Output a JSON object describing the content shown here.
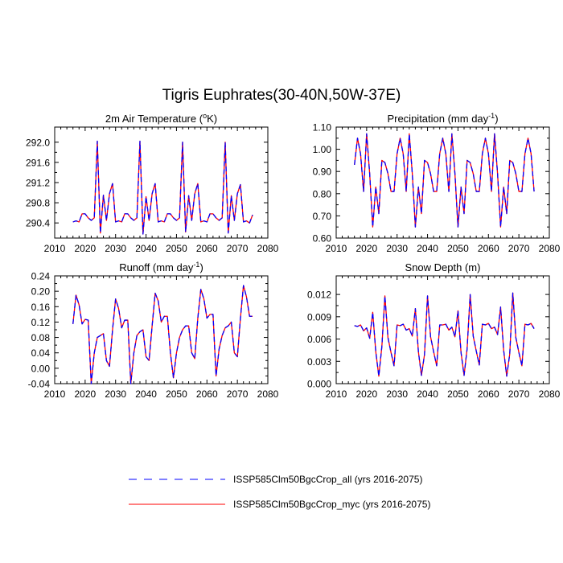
{
  "figure": {
    "title": "Tigris Euphrates(30-40N,50W-37E)"
  },
  "legend": {
    "entries": [
      {
        "label": "ISSP585Clm50BgcCrop_all (yrs 2016-2075)",
        "color": "#0000ff",
        "style": "dashed"
      },
      {
        "label": "ISSP585Clm50BgcCrop_myc (yrs 2016-2075)",
        "color": "#ff0000",
        "style": "solid"
      }
    ]
  },
  "chart_data": [
    {
      "type": "line",
      "title": "2m Air Temperature (°K)",
      "title_parts": [
        "2m Air Temperature (",
        "o",
        "K)"
      ],
      "xlim": [
        2010,
        2080
      ],
      "xticks": [
        2010,
        2020,
        2030,
        2040,
        2050,
        2060,
        2070,
        2080
      ],
      "ylim": [
        290.1,
        292.3
      ],
      "yticks": [
        290.4,
        290.8,
        291.2,
        291.6,
        292.0
      ],
      "ytick_labels": [
        "290.4",
        "290.8",
        "291.2",
        "291.6",
        "292.0"
      ],
      "x": [
        2016,
        2017,
        2018,
        2019,
        2020,
        2021,
        2022,
        2023,
        2024,
        2025,
        2026,
        2027,
        2028,
        2029,
        2030,
        2031,
        2032,
        2033,
        2034,
        2035,
        2036,
        2037,
        2038,
        2039,
        2040,
        2041,
        2042,
        2043,
        2044,
        2045,
        2046,
        2047,
        2048,
        2049,
        2050,
        2051,
        2052,
        2053,
        2054,
        2055,
        2056,
        2057,
        2058,
        2059,
        2060,
        2061,
        2062,
        2063,
        2064,
        2065,
        2066,
        2067,
        2068,
        2069,
        2070,
        2071,
        2072,
        2073,
        2074,
        2075
      ],
      "series": [
        {
          "name": "ISSP585Clm50BgcCrop_all (yrs 2016-2075)",
          "values": [
            290.42,
            290.44,
            290.42,
            290.58,
            290.58,
            290.5,
            290.45,
            290.5,
            292.02,
            290.2,
            290.95,
            290.45,
            290.98,
            291.18,
            290.42,
            290.44,
            290.42,
            290.58,
            290.58,
            290.5,
            290.45,
            290.5,
            292.02,
            290.18,
            290.92,
            290.45,
            290.98,
            291.18,
            290.42,
            290.44,
            290.42,
            290.58,
            290.58,
            290.5,
            290.45,
            290.5,
            292.0,
            290.22,
            290.94,
            290.45,
            290.98,
            291.18,
            290.42,
            290.44,
            290.42,
            290.58,
            290.58,
            290.5,
            290.45,
            290.5,
            292.0,
            290.2,
            290.94,
            290.45,
            290.98,
            291.16,
            290.42,
            290.44,
            290.4,
            290.56
          ]
        },
        {
          "name": "ISSP585Clm50BgcCrop_myc (yrs 2016-2075)",
          "values": [
            290.42,
            290.44,
            290.42,
            290.58,
            290.58,
            290.5,
            290.45,
            290.5,
            292.02,
            290.2,
            290.95,
            290.45,
            290.98,
            291.18,
            290.42,
            290.44,
            290.42,
            290.58,
            290.58,
            290.5,
            290.45,
            290.5,
            292.02,
            290.18,
            290.92,
            290.45,
            290.98,
            291.18,
            290.42,
            290.44,
            290.42,
            290.58,
            290.58,
            290.5,
            290.45,
            290.5,
            292.0,
            290.22,
            290.94,
            290.45,
            290.98,
            291.18,
            290.42,
            290.44,
            290.42,
            290.58,
            290.58,
            290.5,
            290.45,
            290.5,
            292.0,
            290.2,
            290.94,
            290.45,
            290.98,
            291.16,
            290.42,
            290.44,
            290.4,
            290.56
          ]
        }
      ]
    },
    {
      "type": "line",
      "title": "Precipitation (mm day-1)",
      "title_parts": [
        "Precipitation (mm day",
        "-1",
        ")"
      ],
      "xlim": [
        2010,
        2080
      ],
      "xticks": [
        2010,
        2020,
        2030,
        2040,
        2050,
        2060,
        2070,
        2080
      ],
      "ylim": [
        0.6,
        1.1
      ],
      "yticks": [
        0.6,
        0.7,
        0.8,
        0.9,
        1.0,
        1.1
      ],
      "ytick_labels": [
        "0.60",
        "0.70",
        "0.80",
        "0.90",
        "1.00",
        "1.10"
      ],
      "x": [
        2016,
        2017,
        2018,
        2019,
        2020,
        2021,
        2022,
        2023,
        2024,
        2025,
        2026,
        2027,
        2028,
        2029,
        2030,
        2031,
        2032,
        2033,
        2034,
        2035,
        2036,
        2037,
        2038,
        2039,
        2040,
        2041,
        2042,
        2043,
        2044,
        2045,
        2046,
        2047,
        2048,
        2049,
        2050,
        2051,
        2052,
        2053,
        2054,
        2055,
        2056,
        2057,
        2058,
        2059,
        2060,
        2061,
        2062,
        2063,
        2064,
        2065,
        2066,
        2067,
        2068,
        2069,
        2070,
        2071,
        2072,
        2073,
        2074,
        2075
      ],
      "series": [
        {
          "name": "ISSP585Clm50BgcCrop_all (yrs 2016-2075)",
          "values": [
            0.93,
            1.05,
            0.98,
            0.81,
            1.07,
            0.89,
            0.65,
            0.83,
            0.71,
            0.95,
            0.94,
            0.89,
            0.81,
            0.81,
            0.98,
            1.05,
            0.98,
            0.81,
            1.07,
            0.89,
            0.65,
            0.83,
            0.71,
            0.95,
            0.94,
            0.89,
            0.81,
            0.81,
            0.98,
            1.05,
            0.98,
            0.81,
            1.07,
            0.89,
            0.65,
            0.83,
            0.71,
            0.95,
            0.94,
            0.89,
            0.81,
            0.81,
            0.98,
            1.05,
            0.98,
            0.81,
            1.07,
            0.89,
            0.65,
            0.83,
            0.71,
            0.95,
            0.94,
            0.89,
            0.81,
            0.81,
            0.98,
            1.05,
            0.98,
            0.81
          ]
        },
        {
          "name": "ISSP585Clm50BgcCrop_myc (yrs 2016-2075)",
          "values": [
            0.93,
            1.05,
            0.98,
            0.81,
            1.07,
            0.89,
            0.65,
            0.83,
            0.71,
            0.95,
            0.94,
            0.89,
            0.81,
            0.81,
            0.98,
            1.05,
            0.98,
            0.81,
            1.07,
            0.89,
            0.65,
            0.83,
            0.71,
            0.95,
            0.94,
            0.89,
            0.81,
            0.81,
            0.98,
            1.05,
            0.98,
            0.81,
            1.07,
            0.89,
            0.65,
            0.83,
            0.71,
            0.95,
            0.94,
            0.89,
            0.81,
            0.81,
            0.98,
            1.05,
            0.98,
            0.81,
            1.07,
            0.89,
            0.65,
            0.83,
            0.71,
            0.95,
            0.94,
            0.89,
            0.81,
            0.81,
            0.98,
            1.05,
            0.98,
            0.81
          ]
        }
      ]
    },
    {
      "type": "line",
      "title": "Runoff (mm day-1)",
      "title_parts": [
        "Runoff (mm day",
        "-1",
        ")"
      ],
      "xlim": [
        2010,
        2080
      ],
      "xticks": [
        2010,
        2020,
        2030,
        2040,
        2050,
        2060,
        2070,
        2080
      ],
      "ylim": [
        -0.04,
        0.24
      ],
      "yticks": [
        -0.04,
        0.0,
        0.04,
        0.08,
        0.12,
        0.16,
        0.2,
        0.24
      ],
      "ytick_labels": [
        "-0.04",
        "0.00",
        "0.04",
        "0.08",
        "0.12",
        "0.16",
        "0.20",
        "0.24"
      ],
      "x": [
        2016,
        2017,
        2018,
        2019,
        2020,
        2021,
        2022,
        2023,
        2024,
        2025,
        2026,
        2027,
        2028,
        2029,
        2030,
        2031,
        2032,
        2033,
        2034,
        2035,
        2036,
        2037,
        2038,
        2039,
        2040,
        2041,
        2042,
        2043,
        2044,
        2045,
        2046,
        2047,
        2048,
        2049,
        2050,
        2051,
        2052,
        2053,
        2054,
        2055,
        2056,
        2057,
        2058,
        2059,
        2060,
        2061,
        2062,
        2063,
        2064,
        2065,
        2066,
        2067,
        2068,
        2069,
        2070,
        2071,
        2072,
        2073,
        2074,
        2075
      ],
      "series": [
        {
          "name": "ISSP585Clm50BgcCrop_all (yrs 2016-2075)",
          "values": [
            0.115,
            0.19,
            0.165,
            0.115,
            0.127,
            0.125,
            -0.04,
            0.04,
            0.08,
            0.085,
            0.09,
            0.02,
            0.005,
            0.1,
            0.18,
            0.155,
            0.105,
            0.125,
            0.125,
            -0.04,
            0.04,
            0.085,
            0.095,
            0.1,
            0.03,
            0.02,
            0.11,
            0.195,
            0.175,
            0.12,
            0.135,
            0.135,
            0.04,
            -0.025,
            0.04,
            0.08,
            0.1,
            0.11,
            0.11,
            0.04,
            0.025,
            0.13,
            0.205,
            0.18,
            0.13,
            0.14,
            0.14,
            -0.02,
            0.05,
            0.085,
            0.105,
            0.11,
            0.12,
            0.04,
            0.03,
            0.13,
            0.215,
            0.185,
            0.135,
            0.135
          ]
        },
        {
          "name": "ISSP585Clm50BgcCrop_myc (yrs 2016-2075)",
          "values": [
            0.115,
            0.19,
            0.165,
            0.115,
            0.127,
            0.125,
            -0.04,
            0.04,
            0.08,
            0.085,
            0.09,
            0.02,
            0.005,
            0.1,
            0.18,
            0.155,
            0.105,
            0.125,
            0.125,
            -0.04,
            0.04,
            0.085,
            0.095,
            0.1,
            0.03,
            0.02,
            0.11,
            0.195,
            0.175,
            0.12,
            0.135,
            0.135,
            0.04,
            -0.025,
            0.04,
            0.08,
            0.1,
            0.11,
            0.11,
            0.04,
            0.025,
            0.13,
            0.205,
            0.18,
            0.13,
            0.14,
            0.14,
            -0.02,
            0.05,
            0.085,
            0.105,
            0.11,
            0.12,
            0.04,
            0.03,
            0.13,
            0.215,
            0.185,
            0.135,
            0.135
          ]
        }
      ]
    },
    {
      "type": "line",
      "title": "Snow Depth (m)",
      "title_parts": [
        "Snow Depth (m)"
      ],
      "xlim": [
        2010,
        2080
      ],
      "xticks": [
        2010,
        2020,
        2030,
        2040,
        2050,
        2060,
        2070,
        2080
      ],
      "ylim": [
        0.0,
        0.0145
      ],
      "yticks": [
        0.0,
        0.003,
        0.006,
        0.009,
        0.012
      ],
      "ytick_labels": [
        "0.000",
        "0.003",
        "0.006",
        "0.009",
        "0.012"
      ],
      "x": [
        2016,
        2017,
        2018,
        2019,
        2020,
        2021,
        2022,
        2023,
        2024,
        2025,
        2026,
        2027,
        2028,
        2029,
        2030,
        2031,
        2032,
        2033,
        2034,
        2035,
        2036,
        2037,
        2038,
        2039,
        2040,
        2041,
        2042,
        2043,
        2044,
        2045,
        2046,
        2047,
        2048,
        2049,
        2050,
        2051,
        2052,
        2053,
        2054,
        2055,
        2056,
        2057,
        2058,
        2059,
        2060,
        2061,
        2062,
        2063,
        2064,
        2065,
        2066,
        2067,
        2068,
        2069,
        2070,
        2071,
        2072,
        2073,
        2074,
        2075
      ],
      "series": [
        {
          "name": "ISSP585Clm50BgcCrop_all (yrs 2016-2075)",
          "values": [
            0.0078,
            0.0077,
            0.0079,
            0.0071,
            0.0075,
            0.0061,
            0.0096,
            0.0043,
            0.001,
            0.005,
            0.0118,
            0.0062,
            0.0042,
            0.0024,
            0.0079,
            0.0078,
            0.008,
            0.0072,
            0.0074,
            0.0064,
            0.0101,
            0.0043,
            0.0011,
            0.0039,
            0.0118,
            0.0063,
            0.0043,
            0.0024,
            0.0079,
            0.0079,
            0.008,
            0.0072,
            0.0076,
            0.0063,
            0.0098,
            0.0042,
            0.0011,
            0.0047,
            0.012,
            0.0064,
            0.0044,
            0.0025,
            0.008,
            0.0079,
            0.0081,
            0.0074,
            0.0076,
            0.0066,
            0.0103,
            0.0045,
            0.001,
            0.004,
            0.0122,
            0.0062,
            0.0042,
            0.0024,
            0.008,
            0.0079,
            0.0081,
            0.0074
          ]
        },
        {
          "name": "ISSP585Clm50BgcCrop_myc (yrs 2016-2075)",
          "values": [
            0.0078,
            0.0077,
            0.0079,
            0.0071,
            0.0075,
            0.0061,
            0.0096,
            0.0043,
            0.001,
            0.005,
            0.0118,
            0.0062,
            0.0042,
            0.0024,
            0.0079,
            0.0078,
            0.008,
            0.0072,
            0.0074,
            0.0064,
            0.0101,
            0.0043,
            0.0011,
            0.0039,
            0.0118,
            0.0063,
            0.0043,
            0.0024,
            0.0079,
            0.0079,
            0.008,
            0.0072,
            0.0076,
            0.0063,
            0.0098,
            0.0042,
            0.0011,
            0.0047,
            0.012,
            0.0064,
            0.0044,
            0.0025,
            0.008,
            0.0079,
            0.0081,
            0.0074,
            0.0076,
            0.0066,
            0.0103,
            0.0045,
            0.001,
            0.004,
            0.0122,
            0.0062,
            0.0042,
            0.0024,
            0.008,
            0.0079,
            0.0081,
            0.0074
          ]
        }
      ]
    }
  ]
}
